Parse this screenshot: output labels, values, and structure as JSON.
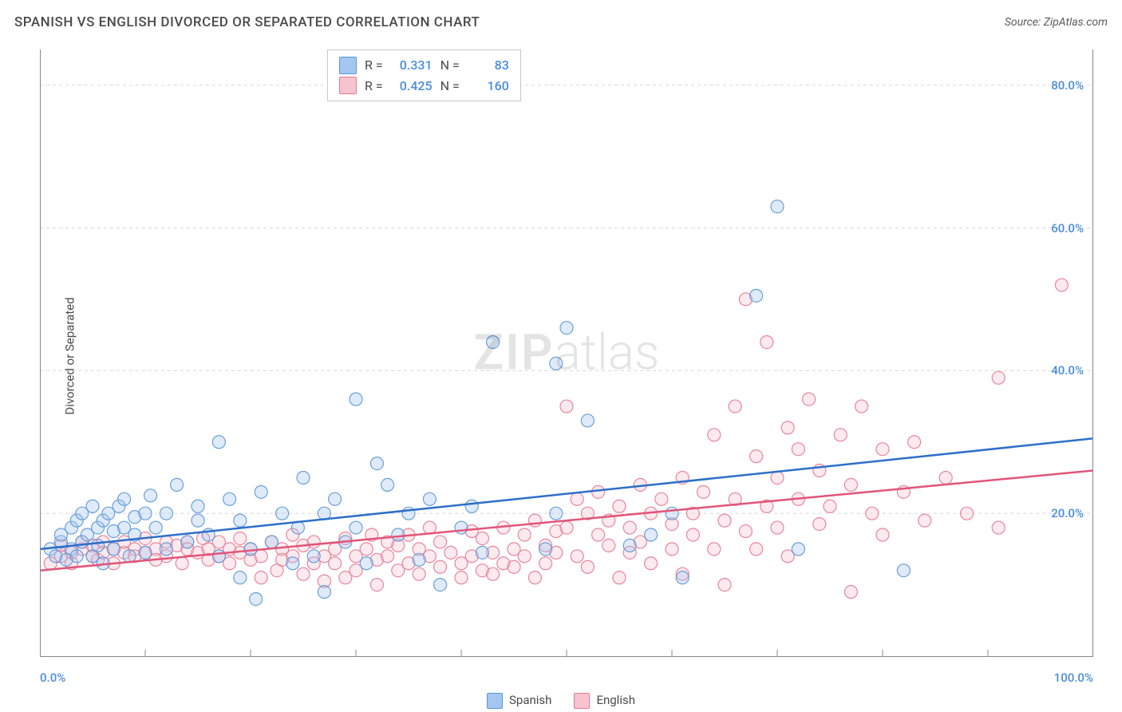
{
  "title": "SPANISH VS ENGLISH DIVORCED OR SEPARATED CORRELATION CHART",
  "source_label": "Source: ZipAtlas.com",
  "ylabel": "Divorced or Separated",
  "watermark_zip": "ZIP",
  "watermark_atlas": "atlas",
  "chart": {
    "type": "scatter",
    "background_color": "#ffffff",
    "grid_color": "#d8d8d8",
    "axis_color": "#888888",
    "xlim": [
      0,
      100
    ],
    "ylim": [
      0,
      85
    ],
    "x_ticks_major": [
      0,
      100
    ],
    "x_ticks_minor": [
      10,
      20,
      30,
      40,
      50,
      60,
      70,
      80,
      90
    ],
    "x_tick_labels": {
      "0": "0.0%",
      "100": "100.0%"
    },
    "y_ticks": [
      20,
      40,
      60,
      80
    ],
    "y_tick_labels": {
      "20": "20.0%",
      "40": "40.0%",
      "60": "60.0%",
      "80": "80.0%"
    },
    "marker_radius": 8,
    "marker_fill_opacity": 0.35,
    "marker_stroke_opacity": 0.9,
    "regression_line_width": 2.5,
    "series": [
      {
        "name": "Spanish",
        "color_fill": "#a3c7f0",
        "color_stroke": "#5a96d6",
        "line_color": "#2d6fc9",
        "r": "0.331",
        "n": "83",
        "regression": {
          "x1": 0,
          "y1": 15.0,
          "x2": 100,
          "y2": 30.5
        },
        "points": [
          [
            1,
            15
          ],
          [
            1.5,
            14
          ],
          [
            2,
            16
          ],
          [
            2,
            17
          ],
          [
            2.5,
            13.5
          ],
          [
            3,
            18
          ],
          [
            3,
            15
          ],
          [
            3.5,
            14
          ],
          [
            3.5,
            19
          ],
          [
            4,
            16
          ],
          [
            4,
            20
          ],
          [
            4.5,
            17
          ],
          [
            5,
            14
          ],
          [
            5,
            21
          ],
          [
            5.5,
            18
          ],
          [
            5.5,
            15.5
          ],
          [
            6,
            19
          ],
          [
            6,
            13
          ],
          [
            6.5,
            20
          ],
          [
            7,
            17.5
          ],
          [
            7,
            15
          ],
          [
            7.5,
            21
          ],
          [
            8,
            18
          ],
          [
            8,
            22
          ],
          [
            8.5,
            14
          ],
          [
            9,
            19.5
          ],
          [
            9,
            17
          ],
          [
            10,
            20
          ],
          [
            10,
            14.5
          ],
          [
            10.5,
            22.5
          ],
          [
            11,
            18
          ],
          [
            12,
            20
          ],
          [
            12,
            15
          ],
          [
            13,
            24
          ],
          [
            14,
            16
          ],
          [
            15,
            19
          ],
          [
            15,
            21
          ],
          [
            16,
            17
          ],
          [
            17,
            30
          ],
          [
            17,
            14
          ],
          [
            18,
            22
          ],
          [
            19,
            11
          ],
          [
            19,
            19
          ],
          [
            20,
            15
          ],
          [
            20.5,
            8
          ],
          [
            21,
            23
          ],
          [
            22,
            16
          ],
          [
            23,
            20
          ],
          [
            24,
            13
          ],
          [
            24.5,
            18
          ],
          [
            25,
            25
          ],
          [
            26,
            14
          ],
          [
            27,
            20
          ],
          [
            27,
            9
          ],
          [
            28,
            22
          ],
          [
            29,
            16
          ],
          [
            30,
            36
          ],
          [
            30,
            18
          ],
          [
            31,
            13
          ],
          [
            32,
            27
          ],
          [
            33,
            24
          ],
          [
            34,
            17
          ],
          [
            35,
            20
          ],
          [
            36,
            13.5
          ],
          [
            37,
            22
          ],
          [
            38,
            10
          ],
          [
            40,
            18
          ],
          [
            41,
            21
          ],
          [
            42,
            14.5
          ],
          [
            43,
            44
          ],
          [
            48,
            15
          ],
          [
            49,
            41
          ],
          [
            49,
            20
          ],
          [
            50,
            46
          ],
          [
            52,
            33
          ],
          [
            56,
            15.5
          ],
          [
            58,
            17
          ],
          [
            60,
            20
          ],
          [
            61,
            11
          ],
          [
            68,
            50.5
          ],
          [
            70,
            63
          ],
          [
            72,
            15
          ],
          [
            82,
            12
          ]
        ]
      },
      {
        "name": "English",
        "color_fill": "#f7c3cf",
        "color_stroke": "#e77991",
        "line_color": "#e25578",
        "r": "0.425",
        "n": "160",
        "regression": {
          "x1": 0,
          "y1": 12.0,
          "x2": 100,
          "y2": 26.0
        },
        "points": [
          [
            1,
            13
          ],
          [
            2,
            14
          ],
          [
            2,
            15.5
          ],
          [
            3,
            14.5
          ],
          [
            3,
            13
          ],
          [
            4,
            15
          ],
          [
            4,
            16
          ],
          [
            5,
            14
          ],
          [
            5,
            15.5
          ],
          [
            5.5,
            13.5
          ],
          [
            6,
            16
          ],
          [
            6,
            14.5
          ],
          [
            7,
            15
          ],
          [
            7,
            13
          ],
          [
            8,
            14.5
          ],
          [
            8,
            16
          ],
          [
            9,
            15
          ],
          [
            9,
            14
          ],
          [
            10,
            16.5
          ],
          [
            10,
            14.5
          ],
          [
            11,
            15
          ],
          [
            11,
            13.5
          ],
          [
            12,
            16
          ],
          [
            12,
            14
          ],
          [
            13,
            15.5
          ],
          [
            13.5,
            13
          ],
          [
            14,
            16
          ],
          [
            14,
            15
          ],
          [
            15,
            14.5
          ],
          [
            15.5,
            16.5
          ],
          [
            16,
            13.5
          ],
          [
            16,
            15
          ],
          [
            17,
            14
          ],
          [
            17,
            16
          ],
          [
            18,
            15
          ],
          [
            18,
            13
          ],
          [
            19,
            16.5
          ],
          [
            19,
            14.5
          ],
          [
            20,
            15
          ],
          [
            20,
            13.5
          ],
          [
            21,
            11
          ],
          [
            21,
            14
          ],
          [
            22,
            16
          ],
          [
            22.5,
            12
          ],
          [
            23,
            15
          ],
          [
            23,
            13.5
          ],
          [
            24,
            17
          ],
          [
            24,
            14
          ],
          [
            25,
            11.5
          ],
          [
            25,
            15.5
          ],
          [
            26,
            13
          ],
          [
            26,
            16
          ],
          [
            27,
            14
          ],
          [
            27,
            10.5
          ],
          [
            28,
            15
          ],
          [
            28,
            13
          ],
          [
            29,
            11
          ],
          [
            29,
            16.5
          ],
          [
            30,
            14
          ],
          [
            30,
            12
          ],
          [
            31,
            15
          ],
          [
            31.5,
            17
          ],
          [
            32,
            13.5
          ],
          [
            32,
            10
          ],
          [
            33,
            16
          ],
          [
            33,
            14
          ],
          [
            34,
            12
          ],
          [
            34,
            15.5
          ],
          [
            35,
            17
          ],
          [
            35,
            13
          ],
          [
            36,
            11.5
          ],
          [
            36,
            15
          ],
          [
            37,
            14
          ],
          [
            37,
            18
          ],
          [
            38,
            12.5
          ],
          [
            38,
            16
          ],
          [
            39,
            14.5
          ],
          [
            40,
            13
          ],
          [
            40,
            11
          ],
          [
            41,
            17.5
          ],
          [
            41,
            14
          ],
          [
            42,
            12
          ],
          [
            42,
            16.5
          ],
          [
            43,
            14.5
          ],
          [
            43,
            11.5
          ],
          [
            44,
            18
          ],
          [
            44,
            13
          ],
          [
            45,
            15
          ],
          [
            45,
            12.5
          ],
          [
            46,
            17
          ],
          [
            46,
            14
          ],
          [
            47,
            11
          ],
          [
            47,
            19
          ],
          [
            48,
            15.5
          ],
          [
            48,
            13
          ],
          [
            49,
            17.5
          ],
          [
            49,
            14.5
          ],
          [
            50,
            35
          ],
          [
            50,
            18
          ],
          [
            51,
            22
          ],
          [
            51,
            14
          ],
          [
            52,
            20
          ],
          [
            52,
            12.5
          ],
          [
            53,
            17
          ],
          [
            53,
            23
          ],
          [
            54,
            15.5
          ],
          [
            54,
            19
          ],
          [
            55,
            11
          ],
          [
            55,
            21
          ],
          [
            56,
            18
          ],
          [
            56,
            14.5
          ],
          [
            57,
            24
          ],
          [
            57,
            16
          ],
          [
            58,
            20
          ],
          [
            58,
            13
          ],
          [
            59,
            22
          ],
          [
            60,
            18.5
          ],
          [
            60,
            15
          ],
          [
            61,
            25
          ],
          [
            61,
            11.5
          ],
          [
            62,
            20
          ],
          [
            62,
            17
          ],
          [
            63,
            23
          ],
          [
            64,
            15
          ],
          [
            64,
            31
          ],
          [
            65,
            19
          ],
          [
            65,
            10
          ],
          [
            66,
            35
          ],
          [
            66,
            22
          ],
          [
            67,
            17.5
          ],
          [
            67,
            50
          ],
          [
            68,
            28
          ],
          [
            68,
            15
          ],
          [
            69,
            21
          ],
          [
            69,
            44
          ],
          [
            70,
            25
          ],
          [
            70,
            18
          ],
          [
            71,
            32
          ],
          [
            71,
            14
          ],
          [
            72,
            22
          ],
          [
            72,
            29
          ],
          [
            73,
            36
          ],
          [
            74,
            18.5
          ],
          [
            74,
            26
          ],
          [
            75,
            21
          ],
          [
            76,
            31
          ],
          [
            77,
            9
          ],
          [
            77,
            24
          ],
          [
            78,
            35
          ],
          [
            79,
            20
          ],
          [
            80,
            29
          ],
          [
            80,
            17
          ],
          [
            82,
            23
          ],
          [
            83,
            30
          ],
          [
            84,
            19
          ],
          [
            86,
            25
          ],
          [
            88,
            20
          ],
          [
            91,
            39
          ],
          [
            91,
            18
          ],
          [
            97,
            52
          ]
        ]
      }
    ],
    "bottom_legend": [
      {
        "label": "Spanish",
        "fill": "#a3c7f0",
        "stroke": "#5a96d6"
      },
      {
        "label": "English",
        "fill": "#f7c3cf",
        "stroke": "#e77991"
      }
    ]
  }
}
